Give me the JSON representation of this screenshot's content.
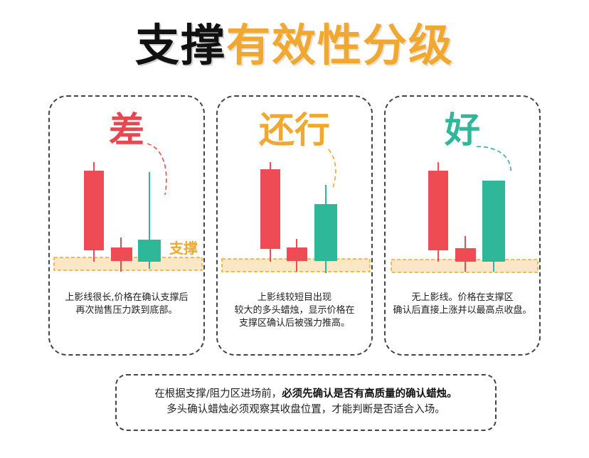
{
  "title": {
    "part1": "支撑",
    "part2": "有效性分级"
  },
  "colors": {
    "bear": "#ef4b55",
    "bull": "#2fb79a",
    "accent": "#f0a830",
    "zone": "#fbe7c6"
  },
  "cards": [
    {
      "grade": "差",
      "grade_color": "#e8474f",
      "support_label": "支撑",
      "description": "上影线很长,价格在确认支撑后\n再次抛售压力跌到底部。"
    },
    {
      "grade": "还行",
      "grade_color": "#f0a830",
      "description": "上影线较短目出现\n较大的多头蜡烛，显示价格在\n支撑区确认后被强力推高。"
    },
    {
      "grade": "好",
      "grade_color": "#2fb79a",
      "description": "无上影线。价格在支撑区\n确认后直接上涨并以最高点收盘。"
    }
  ],
  "note": {
    "line1_plain": "在根据支撑/阻力区进场前，",
    "line1_bold": "必须先确认是否有高质量的确认蜡烛。",
    "line2": "多头确认蜡烛必须观察其收盘位置，才能判断是否适合入场。"
  }
}
